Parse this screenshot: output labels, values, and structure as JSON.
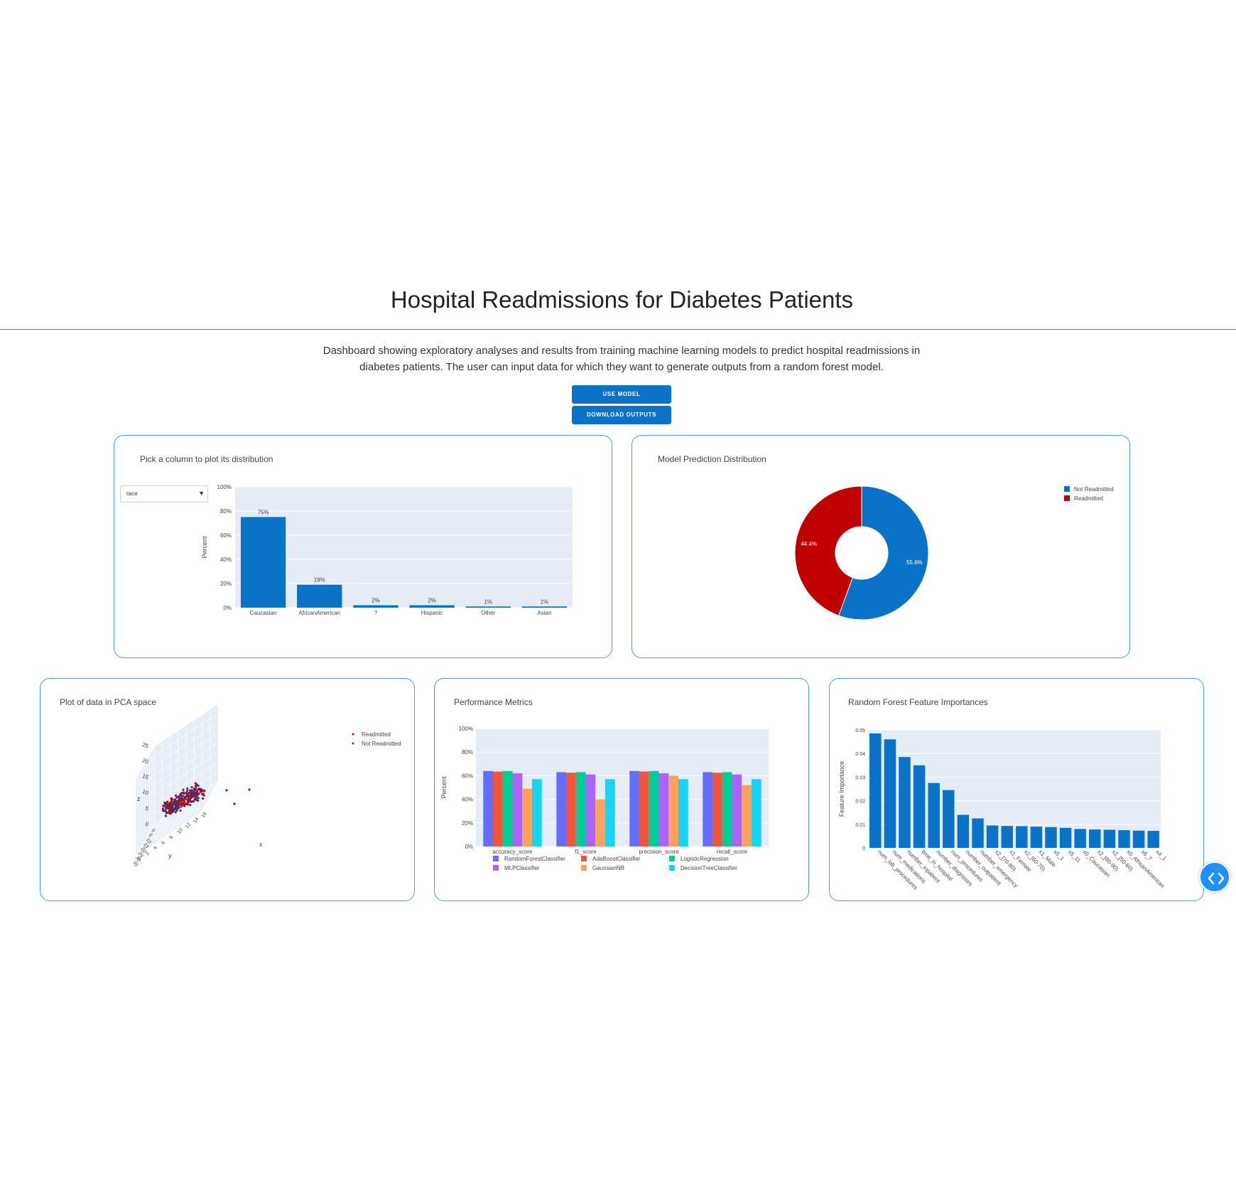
{
  "page": {
    "title": "Hospital Readmissions for Diabetes Patients",
    "description": "Dashboard showing exploratory analyses and results from training machine learning models to predict hospital readmissions in diabetes patients. The user can input data for which they want to generate outputs from a random forest model.",
    "use_model_label": "USE MODEL",
    "download_outputs_label": "DOWNLOAD OUTPUTS",
    "toggle_icon": "code-chevrons-icon"
  },
  "distribution_card": {
    "title": "Pick a column to plot its distribution",
    "dropdown_value": "race",
    "dropdown_arrow": "▼"
  },
  "prediction_card": {
    "title": "Model Prediction Distribution"
  },
  "pca_card": {
    "title": "Plot of data in PCA space"
  },
  "metrics_card": {
    "title": "Performance Metrics"
  },
  "importance_card": {
    "title": "Random Forest Feature Importances"
  },
  "colors": {
    "accent": "#0b73c7",
    "card_border": "#4c9be8",
    "plot_bg": "#e5ecf6",
    "bar": "#0b73c7",
    "readmitted": "#c00000"
  },
  "chart_data": [
    {
      "id": "distribution",
      "type": "bar",
      "categories": [
        "Caucasian",
        "AfricanAmerican",
        "?",
        "Hispanic",
        "Other",
        "Asian"
      ],
      "values": [
        75,
        19,
        2,
        2,
        1,
        1
      ],
      "labels": [
        "75%",
        "19%",
        "2%",
        "2%",
        "1%",
        "1%"
      ],
      "ylabel": "Percent",
      "yticks": [
        "0%",
        "20%",
        "40%",
        "60%",
        "80%",
        "100%"
      ],
      "ylim": [
        0,
        100
      ]
    },
    {
      "id": "prediction",
      "type": "pie",
      "labels": [
        "Not Readmitted",
        "Readmitted"
      ],
      "values": [
        55.6,
        44.4
      ],
      "text": [
        "55.6%",
        "44.4%"
      ],
      "colors": [
        "#0b73c7",
        "#c00000"
      ],
      "hole": true
    },
    {
      "id": "pca",
      "type": "scatter",
      "dimensions": 3,
      "legend": [
        "Readmitted",
        "Not Readmitted"
      ],
      "axes": [
        "x",
        "y",
        "z"
      ],
      "z_ticks": [
        "0",
        "5",
        "10",
        "15",
        "20",
        "25"
      ],
      "y_ticks": [
        "0",
        "5",
        "10",
        "15",
        "20",
        "25",
        "30",
        "35"
      ],
      "x_ticks": [
        "0",
        "2",
        "4",
        "6",
        "8",
        "10",
        "12",
        "14",
        "16"
      ]
    },
    {
      "id": "metrics",
      "type": "bar",
      "categories": [
        "accuracy_score",
        "f1_score",
        "precision_score",
        "recall_score"
      ],
      "series": [
        {
          "name": "RandomForestClassifier",
          "color": "#636efa",
          "values": [
            64,
            63,
            64,
            63
          ]
        },
        {
          "name": "AdaBoostClassifier",
          "color": "#ef553b",
          "values": [
            63.5,
            62.5,
            63.5,
            62.5
          ]
        },
        {
          "name": "LogisticRegression",
          "color": "#00cc96",
          "values": [
            64,
            63,
            64,
            63
          ]
        },
        {
          "name": "MLPClassifier",
          "color": "#ab63fa",
          "values": [
            62,
            61,
            62,
            61
          ]
        },
        {
          "name": "GaussianNB",
          "color": "#ffa15a",
          "values": [
            49,
            40,
            60,
            52
          ]
        },
        {
          "name": "DecisionTreeClassifier",
          "color": "#19d3f3",
          "values": [
            57,
            57,
            57,
            57
          ]
        }
      ],
      "ylabel": "Percent",
      "yticks": [
        "0%",
        "20%",
        "40%",
        "60%",
        "80%",
        "100%"
      ],
      "ylim": [
        0,
        100
      ]
    },
    {
      "id": "importance",
      "type": "bar",
      "categories": [
        "num_lab_procedures",
        "num_medications",
        "number_inpatient",
        "time_in_hospital",
        "number_diagnoses",
        "num_procedures",
        "number_outpatient",
        "number_emergency",
        "x2_[70-80)",
        "x1_Female",
        "x2_[60-70)",
        "x1_Male",
        "x5_1",
        "x5_11",
        "x0_Caucasian",
        "x2_[80-90)",
        "x2_[50-60)",
        "x0_AfricanAmerican",
        "x6_7",
        "x4_1"
      ],
      "values": [
        0.0485,
        0.046,
        0.0385,
        0.035,
        0.0275,
        0.0245,
        0.014,
        0.0125,
        0.0095,
        0.0093,
        0.0092,
        0.009,
        0.0088,
        0.0085,
        0.008,
        0.0078,
        0.0077,
        0.0075,
        0.0073,
        0.0072
      ],
      "ylabel": "Feature Importance",
      "yticks": [
        "0",
        "0.01",
        "0.02",
        "0.03",
        "0.04",
        "0.05"
      ],
      "ylim": [
        0,
        0.05
      ]
    }
  ]
}
